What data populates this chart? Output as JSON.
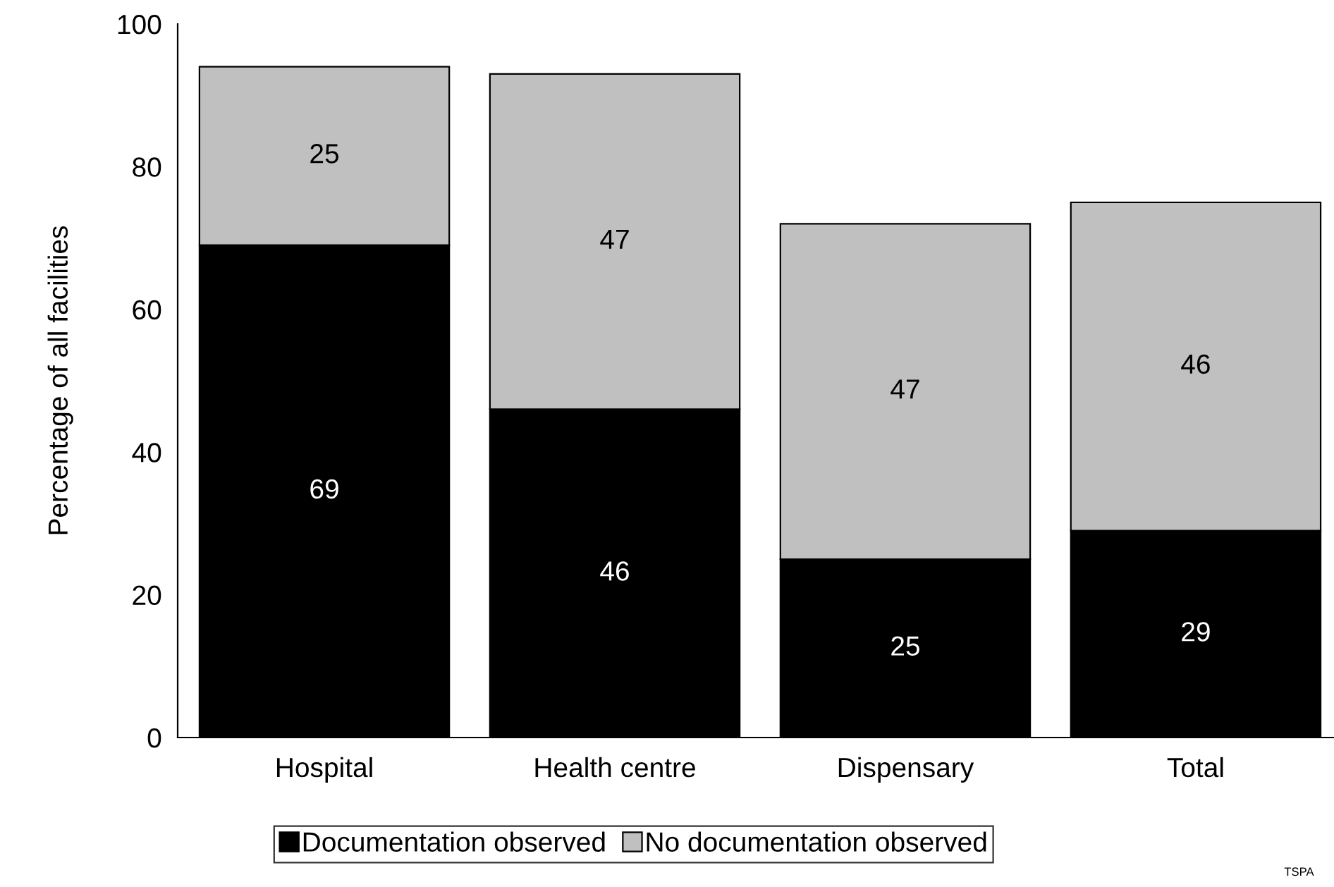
{
  "chart_data": {
    "type": "bar",
    "stacked": true,
    "ylabel": "Percentage of all facilities",
    "categories": [
      "Hospital",
      "Health centre",
      "Dispensary",
      "Total"
    ],
    "series": [
      {
        "name": "Documentation observed",
        "color": "#000000",
        "values": [
          69,
          46,
          25,
          29
        ]
      },
      {
        "name": "No documentation observed",
        "color": "#c0c0c0",
        "values": [
          25,
          47,
          47,
          46
        ]
      }
    ],
    "ylim": [
      0,
      100
    ],
    "yticks": [
      0,
      20,
      40,
      60,
      80,
      100
    ],
    "data_labels": true,
    "legend": "bottom",
    "grid": false,
    "annotations": [
      "TSPA"
    ]
  }
}
